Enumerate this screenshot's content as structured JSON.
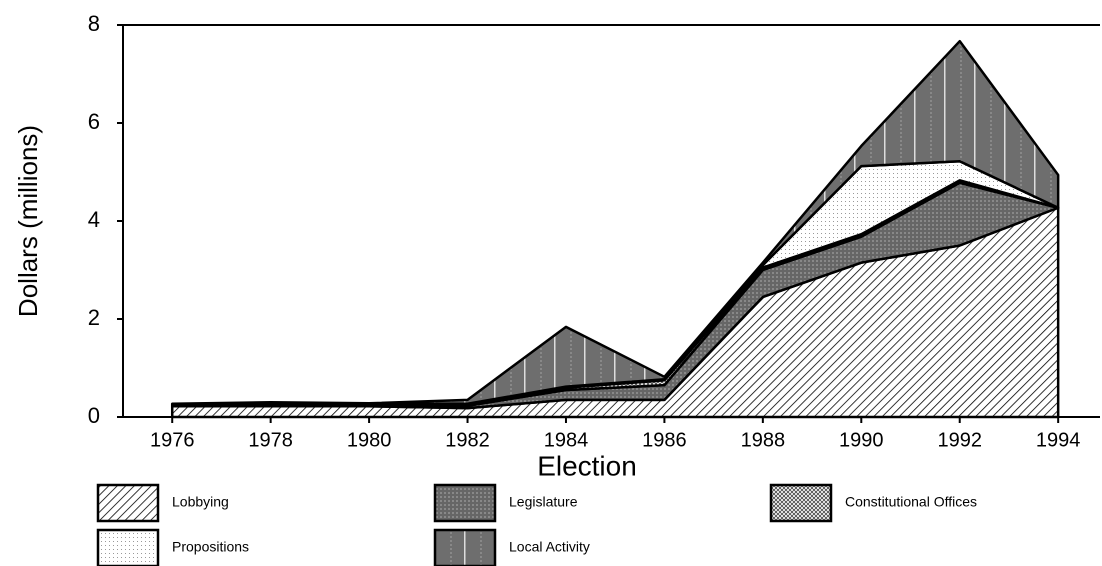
{
  "chart_data": {
    "type": "stacked_area",
    "xlabel": "Election",
    "ylabel": "Dollars (millions)",
    "x": [
      1976,
      1978,
      1980,
      1982,
      1984,
      1986,
      1988,
      1990,
      1992,
      1994
    ],
    "series": [
      {
        "name": "Lobbying",
        "color": "#ffffff",
        "values": [
          0.22,
          0.22,
          0.22,
          0.18,
          0.35,
          0.35,
          2.45,
          3.15,
          3.5,
          4.27
        ]
      },
      {
        "name": "Legislature",
        "color": "#666666",
        "values": [
          0.02,
          0.03,
          0.03,
          0.05,
          0.2,
          0.3,
          0.55,
          0.53,
          1.28,
          0
        ]
      },
      {
        "name": "Constitutional Offices",
        "color": "#999999",
        "values": [
          0.01,
          0.01,
          0.01,
          0.02,
          0.05,
          0.1,
          0.05,
          0.05,
          0.05,
          0
        ]
      },
      {
        "name": "Propositions",
        "color": "#eeeeee",
        "values": [
          0.01,
          0.01,
          0.01,
          0.02,
          0.02,
          0.02,
          0.05,
          1.39,
          0.39,
          0
        ]
      },
      {
        "name": "Local Activity",
        "color": "#777777",
        "values": [
          0.01,
          0.03,
          0.01,
          0.08,
          1.22,
          0.05,
          0.05,
          0.41,
          2.45,
          0.67
        ]
      }
    ],
    "xlim": [
      1975,
      1994.85
    ],
    "xticks": [
      1976,
      1978,
      1980,
      1982,
      1984,
      1986,
      1988,
      1990,
      1992,
      1994
    ],
    "ylim": [
      0,
      8
    ],
    "yticks": [
      0,
      2,
      4,
      6,
      8
    ]
  }
}
